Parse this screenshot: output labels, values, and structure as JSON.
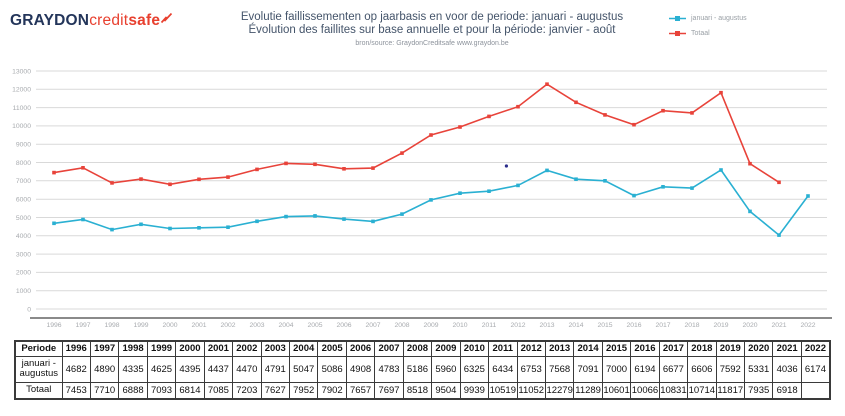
{
  "logo": {
    "graydon": "GRAYDON",
    "credit": "credit",
    "safe": "safe",
    "navy": "#23355a",
    "red": "#e8402f"
  },
  "header": {
    "title_nl": "Evolutie faillissementen op jaarbasis en voor de periode: januari - augustus",
    "title_fr": "Évolution des faillites sur base annuelle et pour la période: janvier - août",
    "source": "bron/source: GraydonCreditsafe www.graydon.be"
  },
  "legend": [
    {
      "label": "januari - augustus",
      "color": "#2ab0d2"
    },
    {
      "label": "Totaal",
      "color": "#e8433a"
    }
  ],
  "chart_data": {
    "type": "line",
    "title": "Evolutie faillissementen op jaarbasis en voor de periode: januari - augustus / Évolution des faillites sur base annuelle et pour la période: janvier - août",
    "x": [
      1996,
      1997,
      1998,
      1999,
      2000,
      2001,
      2002,
      2003,
      2004,
      2005,
      2006,
      2007,
      2008,
      2009,
      2010,
      2011,
      2012,
      2013,
      2014,
      2015,
      2016,
      2017,
      2018,
      2019,
      2020,
      2021,
      2022
    ],
    "series": [
      {
        "name": "januari - augustus",
        "color": "#2ab0d2",
        "values": [
          4682,
          4890,
          4335,
          4625,
          4395,
          4437,
          4470,
          4791,
          5047,
          5086,
          4908,
          4783,
          5186,
          5960,
          6325,
          6434,
          6753,
          7568,
          7091,
          7000,
          6194,
          6677,
          6606,
          7592,
          5331,
          4036,
          6174
        ]
      },
      {
        "name": "Totaal",
        "color": "#e8433a",
        "values": [
          7453,
          7710,
          6888,
          7093,
          6814,
          7085,
          7203,
          7627,
          7952,
          7902,
          7657,
          7697,
          8518,
          9504,
          9939,
          10519,
          11052,
          12279,
          11289,
          10601,
          10066,
          10831,
          10714,
          11817,
          7935,
          6918,
          null
        ]
      }
    ],
    "xlabel": "",
    "ylabel": "",
    "ylim": [
      0,
      13000
    ],
    "ytick_step": 1000,
    "grid": true,
    "legend_position": "top-right",
    "stray_point": {
      "x_year": 2011.6,
      "value": 7810,
      "color": "#2b2e8c"
    }
  },
  "table": {
    "header": [
      "Periode",
      "1996",
      "1997",
      "1998",
      "1999",
      "2000",
      "2001",
      "2002",
      "2003",
      "2004",
      "2005",
      "2006",
      "2007",
      "2008",
      "2009",
      "2010",
      "2011",
      "2012",
      "2013",
      "2014",
      "2015",
      "2016",
      "2017",
      "2018",
      "2019",
      "2020",
      "2021",
      "2022"
    ],
    "rows": [
      {
        "label": "januari - augustus",
        "values": [
          4682,
          4890,
          4335,
          4625,
          4395,
          4437,
          4470,
          4791,
          5047,
          5086,
          4908,
          4783,
          5186,
          5960,
          6325,
          6434,
          6753,
          7568,
          7091,
          7000,
          6194,
          6677,
          6606,
          7592,
          5331,
          4036,
          6174
        ]
      },
      {
        "label": "Totaal",
        "values": [
          7453,
          7710,
          6888,
          7093,
          6814,
          7085,
          7203,
          7627,
          7952,
          7902,
          7657,
          7697,
          8518,
          9504,
          9939,
          10519,
          11052,
          12279,
          11289,
          10601,
          10066,
          10831,
          10714,
          11817,
          7935,
          6918,
          ""
        ]
      }
    ]
  }
}
